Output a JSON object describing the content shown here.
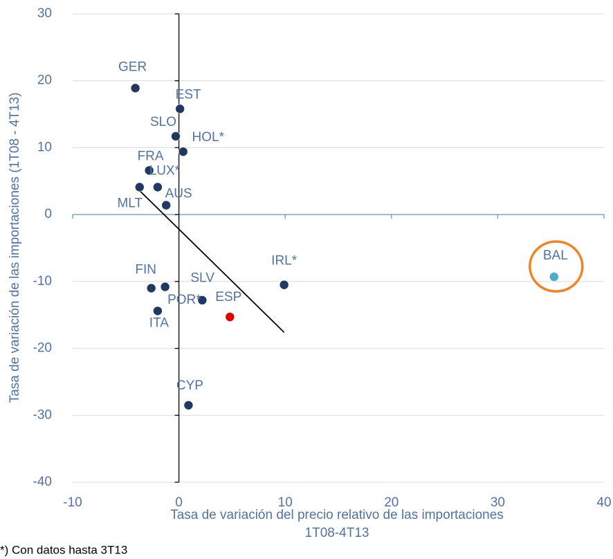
{
  "chart_data": {
    "type": "scatter",
    "xlabel": [
      "Tasa de variación  del precio relativo  de las importaciones",
      "1T08-4T13"
    ],
    "ylabel": "Tasa de variación  de las importaciones    (1T08 - 4T13)",
    "footnote": "*) Con datos hasta 3T13",
    "points": [
      {
        "label": "GER",
        "x": -4.1,
        "y": 18.9,
        "color": "#203864"
      },
      {
        "label": "EST",
        "x": 0.1,
        "y": 15.8,
        "color": "#203864"
      },
      {
        "label": "SLO",
        "x": -0.3,
        "y": 11.7,
        "color": "#203864"
      },
      {
        "label": "HOL*",
        "x": 0.4,
        "y": 9.4,
        "color": "#203864"
      },
      {
        "label": "FRA",
        "x": -2.8,
        "y": 6.6,
        "color": "#203864"
      },
      {
        "label": "LUX*",
        "x": -2.0,
        "y": 4.1,
        "color": "#203864"
      },
      {
        "label": "MLT",
        "x": -3.7,
        "y": 4.1,
        "color": "#203864"
      },
      {
        "label": "AUS",
        "x": -1.2,
        "y": 1.4,
        "color": "#203864"
      },
      {
        "label": "FIN",
        "x": -2.6,
        "y": -11.0,
        "color": "#203864"
      },
      {
        "label": "SLV",
        "x": -1.3,
        "y": -10.8,
        "color": "#203864"
      },
      {
        "label": "POR*",
        "x": 2.2,
        "y": -12.8,
        "color": "#203864"
      },
      {
        "label": "ITA",
        "x": -2.0,
        "y": -14.4,
        "color": "#203864"
      },
      {
        "label": "ESP",
        "x": 4.8,
        "y": -15.3,
        "color": "#e00000"
      },
      {
        "label": "IRL*",
        "x": 9.9,
        "y": -10.5,
        "color": "#203864"
      },
      {
        "label": "CYP",
        "x": 0.9,
        "y": -28.5,
        "color": "#203864"
      },
      {
        "label": "BAL",
        "x": 35.3,
        "y": -9.3,
        "color": "#4bacc6"
      }
    ],
    "trendline": {
      "x": [
        -4.1,
        9.9
      ],
      "y": [
        4.2,
        -17.6
      ],
      "color": "#000000"
    },
    "highlight_color": "#f58220",
    "xlim": [
      -10,
      40
    ],
    "xticks": [
      -10,
      0,
      10,
      20,
      30,
      40
    ],
    "ylim": [
      -40,
      30
    ],
    "yticks": [
      -40,
      -30,
      -20,
      -10,
      0,
      10,
      20,
      30
    ],
    "grid": true
  }
}
